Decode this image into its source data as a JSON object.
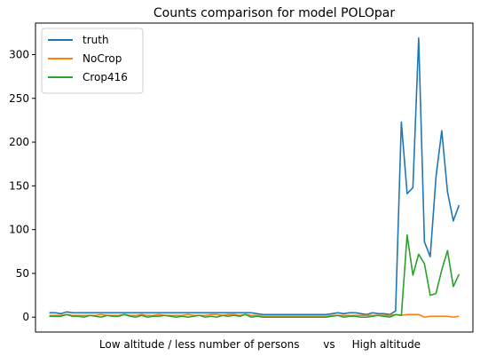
{
  "chart_data": {
    "type": "line",
    "title": "Counts comparison for model POLOpar",
    "xlabel": "Low altitude / less number of persons       vs     High altitude",
    "ylabel": "",
    "ylim": [
      -17,
      336
    ],
    "xlim": [
      -2.4,
      73.4
    ],
    "y_ticks": [
      0,
      50,
      100,
      150,
      200,
      250,
      300
    ],
    "grid": false,
    "legend": {
      "position": "top-left"
    },
    "x": [
      0,
      1,
      2,
      3,
      4,
      5,
      6,
      7,
      8,
      9,
      10,
      11,
      12,
      13,
      14,
      15,
      16,
      17,
      18,
      19,
      20,
      21,
      22,
      23,
      24,
      25,
      26,
      27,
      28,
      29,
      30,
      31,
      32,
      33,
      34,
      35,
      36,
      37,
      38,
      39,
      40,
      41,
      42,
      43,
      44,
      45,
      46,
      47,
      48,
      49,
      50,
      51,
      52,
      53,
      54,
      55,
      56,
      57,
      58,
      59,
      60,
      61,
      62,
      63,
      64,
      65,
      66,
      67,
      68,
      69,
      70,
      71
    ],
    "series": [
      {
        "name": "truth",
        "color": "#1f77b4",
        "values": [
          5,
          5,
          4,
          6,
          5,
          5,
          5,
          5,
          5,
          5,
          5,
          5,
          5,
          5,
          5,
          5,
          5,
          5,
          5,
          5,
          5,
          5,
          5,
          5,
          5,
          5,
          5,
          5,
          5,
          5,
          5,
          5,
          5,
          5,
          5,
          5,
          4,
          3,
          3,
          3,
          3,
          3,
          3,
          3,
          3,
          3,
          3,
          3,
          3,
          4,
          5,
          4,
          5,
          5,
          4,
          3,
          5,
          4,
          4,
          3,
          7,
          223,
          141,
          148,
          319,
          86,
          69,
          160,
          213,
          143,
          110,
          128
        ]
      },
      {
        "name": "NoCrop",
        "color": "#ff7f0e",
        "values": [
          2,
          2,
          2,
          3,
          2,
          2,
          2,
          2,
          2,
          3,
          2,
          2,
          2,
          3,
          2,
          2,
          3,
          2,
          2,
          3,
          2,
          2,
          2,
          2,
          3,
          2,
          2,
          2,
          3,
          3,
          2,
          3,
          3,
          2,
          3,
          2,
          2,
          1,
          1,
          1,
          1,
          1,
          1,
          1,
          1,
          1,
          1,
          1,
          1,
          2,
          2,
          2,
          2,
          2,
          2,
          2,
          2,
          2,
          2,
          2,
          3,
          2,
          3,
          3,
          3,
          0,
          1,
          1,
          1,
          1,
          0,
          1
        ]
      },
      {
        "name": "Crop416",
        "color": "#2ca02c",
        "values": [
          1,
          1,
          1,
          3,
          1,
          1,
          0,
          2,
          1,
          0,
          2,
          1,
          1,
          3,
          1,
          0,
          2,
          0,
          1,
          1,
          2,
          1,
          0,
          1,
          0,
          1,
          2,
          0,
          1,
          0,
          2,
          1,
          2,
          1,
          3,
          0,
          1,
          0,
          0,
          0,
          0,
          0,
          0,
          0,
          0,
          0,
          0,
          0,
          0,
          1,
          2,
          0,
          1,
          1,
          0,
          0,
          1,
          2,
          1,
          0,
          3,
          2,
          94,
          48,
          72,
          61,
          25,
          27,
          54,
          76,
          35,
          49
        ]
      }
    ]
  }
}
